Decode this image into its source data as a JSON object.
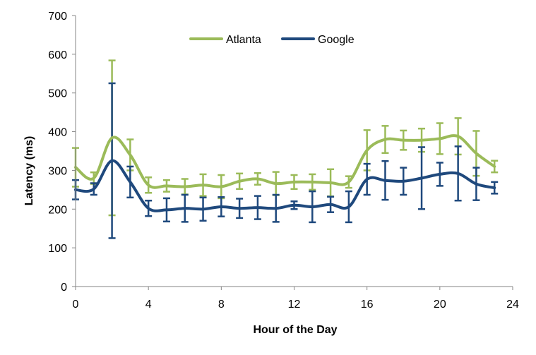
{
  "chart_data": {
    "type": "line",
    "title": "",
    "xlabel": "Hour of the Day",
    "ylabel": "Latency (ms)",
    "xlim": [
      0,
      24
    ],
    "ylim": [
      0,
      700
    ],
    "xticks": [
      0,
      4,
      8,
      12,
      16,
      20,
      24
    ],
    "yticks": [
      0,
      100,
      200,
      300,
      400,
      500,
      600,
      700
    ],
    "grid": false,
    "legend": "top-center",
    "x": [
      0,
      1,
      2,
      3,
      4,
      5,
      6,
      7,
      8,
      9,
      10,
      11,
      12,
      13,
      14,
      15,
      16,
      17,
      18,
      19,
      20,
      21,
      22,
      23
    ],
    "series": [
      {
        "name": "Atlanta",
        "color": "#9BBB59",
        "values": [
          308,
          280,
          384,
          340,
          262,
          260,
          258,
          262,
          258,
          272,
          278,
          266,
          270,
          270,
          268,
          270,
          352,
          380,
          378,
          378,
          382,
          388,
          344,
          310
        ],
        "errors": [
          50,
          15,
          200,
          40,
          20,
          15,
          20,
          28,
          30,
          20,
          15,
          30,
          18,
          20,
          35,
          15,
          52,
          35,
          25,
          30,
          40,
          47,
          58,
          15
        ]
      },
      {
        "name": "Google",
        "color": "#1F497D",
        "values": [
          250,
          252,
          325,
          270,
          202,
          198,
          202,
          200,
          206,
          202,
          204,
          202,
          210,
          206,
          212,
          206,
          277,
          274,
          272,
          280,
          290,
          292,
          265,
          255
        ],
        "errors": [
          25,
          15,
          200,
          40,
          20,
          30,
          35,
          30,
          25,
          25,
          30,
          35,
          10,
          40,
          20,
          40,
          40,
          50,
          35,
          80,
          30,
          70,
          42,
          15
        ]
      }
    ]
  }
}
